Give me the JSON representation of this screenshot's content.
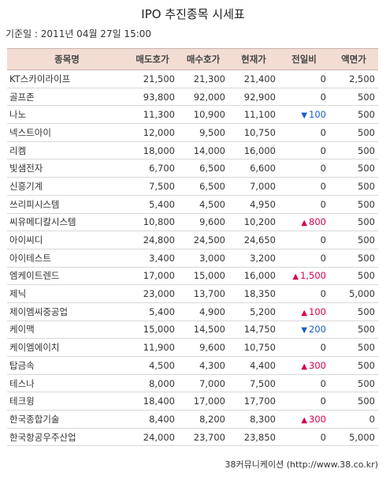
{
  "title": "IPO 추진종목 시세표",
  "base_date": "기준일 : 2011년 04월 27일 15:00",
  "columns": [
    "종목명",
    "매도호가",
    "매수호가",
    "현재가",
    "전일비",
    "액면가"
  ],
  "rows": [
    {
      "name": "KT스카이라이프",
      "ask": "21,500",
      "bid": "21,300",
      "price": "21,400",
      "dir": "",
      "change": "0",
      "par": "2,500"
    },
    {
      "name": "골프존",
      "ask": "93,800",
      "bid": "92,000",
      "price": "92,900",
      "dir": "",
      "change": "0",
      "par": "500"
    },
    {
      "name": "나노",
      "ask": "11,300",
      "bid": "10,900",
      "price": "11,100",
      "dir": "down",
      "change": "100",
      "par": "500"
    },
    {
      "name": "넥스트아이",
      "ask": "12,000",
      "bid": "9,500",
      "price": "10,750",
      "dir": "",
      "change": "0",
      "par": "500"
    },
    {
      "name": "리켐",
      "ask": "18,000",
      "bid": "14,000",
      "price": "16,000",
      "dir": "",
      "change": "0",
      "par": "500"
    },
    {
      "name": "빛샘전자",
      "ask": "6,700",
      "bid": "6,500",
      "price": "6,600",
      "dir": "",
      "change": "0",
      "par": "500"
    },
    {
      "name": "신흥기계",
      "ask": "7,500",
      "bid": "6,500",
      "price": "7,000",
      "dir": "",
      "change": "0",
      "par": "500"
    },
    {
      "name": "쓰리피시스템",
      "ask": "5,400",
      "bid": "4,500",
      "price": "4,950",
      "dir": "",
      "change": "0",
      "par": "500"
    },
    {
      "name": "씨유메디칼시스템",
      "ask": "10,800",
      "bid": "9,600",
      "price": "10,200",
      "dir": "up",
      "change": "800",
      "par": "500"
    },
    {
      "name": "아이씨디",
      "ask": "24,800",
      "bid": "24,500",
      "price": "24,650",
      "dir": "",
      "change": "0",
      "par": "500"
    },
    {
      "name": "아이테스트",
      "ask": "3,400",
      "bid": "3,000",
      "price": "3,200",
      "dir": "",
      "change": "0",
      "par": "500"
    },
    {
      "name": "엠케이트렌드",
      "ask": "17,000",
      "bid": "15,000",
      "price": "16,000",
      "dir": "up",
      "change": "1,500",
      "par": "500"
    },
    {
      "name": "제닉",
      "ask": "23,000",
      "bid": "13,700",
      "price": "18,350",
      "dir": "",
      "change": "0",
      "par": "5,000"
    },
    {
      "name": "제이엠씨중공업",
      "ask": "5,400",
      "bid": "4,900",
      "price": "5,200",
      "dir": "up",
      "change": "100",
      "par": "500"
    },
    {
      "name": "케이맥",
      "ask": "15,000",
      "bid": "14,500",
      "price": "14,750",
      "dir": "down",
      "change": "200",
      "par": "500"
    },
    {
      "name": "케이엠에이치",
      "ask": "11,900",
      "bid": "9,600",
      "price": "10,750",
      "dir": "",
      "change": "0",
      "par": "500"
    },
    {
      "name": "탑금속",
      "ask": "4,500",
      "bid": "4,300",
      "price": "4,400",
      "dir": "up",
      "change": "300",
      "par": "500"
    },
    {
      "name": "테스나",
      "ask": "8,000",
      "bid": "7,000",
      "price": "7,500",
      "dir": "",
      "change": "0",
      "par": "500"
    },
    {
      "name": "테크윙",
      "ask": "18,400",
      "bid": "17,000",
      "price": "17,700",
      "dir": "",
      "change": "0",
      "par": "500"
    },
    {
      "name": "한국종합기술",
      "ask": "8,400",
      "bid": "8,200",
      "price": "8,300",
      "dir": "up",
      "change": "300",
      "par": "0"
    },
    {
      "name": "한국항공우주산업",
      "ask": "24,000",
      "bid": "23,700",
      "price": "23,850",
      "dir": "",
      "change": "0",
      "par": "5,000"
    }
  ],
  "arrows": {
    "up": "▲",
    "down": "▼"
  },
  "colors": {
    "header_bg": "#f3ddd3",
    "up": "#d4004f",
    "down": "#1a5cc9"
  },
  "footer": "38커뮤니케이션 (http://www.38.co.kr)"
}
